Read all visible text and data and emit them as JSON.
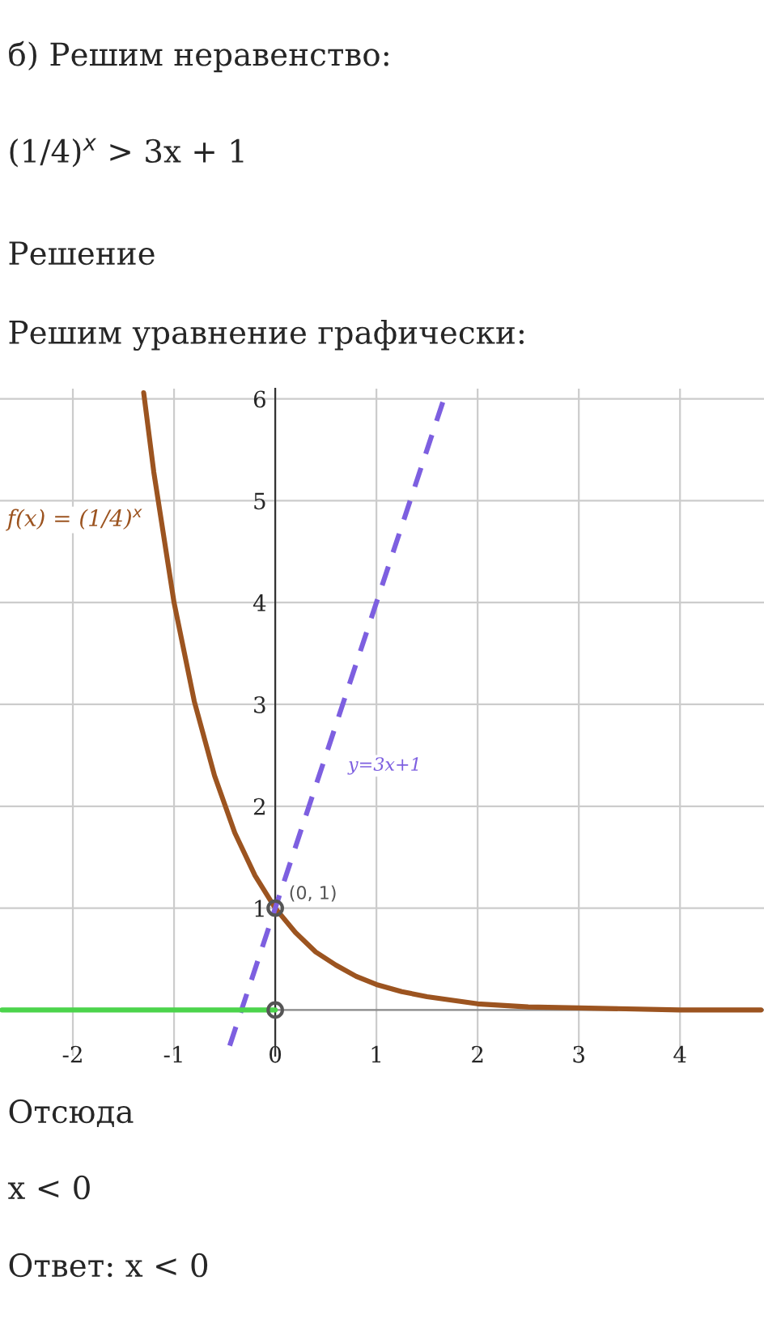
{
  "chart_data": {
    "type": "line",
    "title": "б) Решим неравенство:",
    "annotations": [
      "(1/4)$^{x}$ > 3x + 1",
      "Решение",
      "Решим уравнение графически:",
      "Отсюда",
      "x < 0",
      "Ответ: x < 0",
      {
        "text": "(0, 1)",
        "x": 0,
        "y": 1
      }
    ],
    "series": [
      {
        "name": "f(x) = (1/4)$^{x}$",
        "color": "#9c5420",
        "x": [
          -1.3,
          -1.2,
          -1.0,
          -0.8,
          -0.6,
          -0.4,
          -0.2,
          0,
          0.2,
          0.4,
          0.6,
          0.8,
          1,
          1.25,
          1.5,
          2,
          2.5,
          3,
          4,
          4.8
        ],
        "values": [
          6.06,
          5.28,
          4.0,
          3.03,
          2.3,
          1.74,
          1.32,
          1.0,
          0.76,
          0.57,
          0.44,
          0.33,
          0.25,
          0.18,
          0.13,
          0.06,
          0.03,
          0.02,
          0.0,
          0.0
        ],
        "line_style": "solid"
      },
      {
        "name": "y=3x+1",
        "color": "#7d5fe0",
        "x": [
          -0.45,
          1.7
        ],
        "values": [
          -0.35,
          6.1
        ],
        "line_style": "dashed"
      },
      {
        "color": "#4cd44c",
        "x": [
          -2.7,
          0
        ],
        "values": [
          0,
          0
        ],
        "line_style": "solid"
      },
      {
        "type": "scatter",
        "color": "#555555",
        "x": [
          0,
          0
        ],
        "values": [
          1,
          0
        ],
        "marker": "circle"
      }
    ],
    "xlim": [
      -2.72,
      4.83
    ],
    "ylim": [
      -0.45,
      6.1
    ],
    "xticks": [
      -2,
      -1,
      0,
      1,
      2,
      3,
      4
    ],
    "yticks": [
      1,
      2,
      3,
      4,
      5,
      6
    ],
    "grid": true,
    "legend": false
  }
}
